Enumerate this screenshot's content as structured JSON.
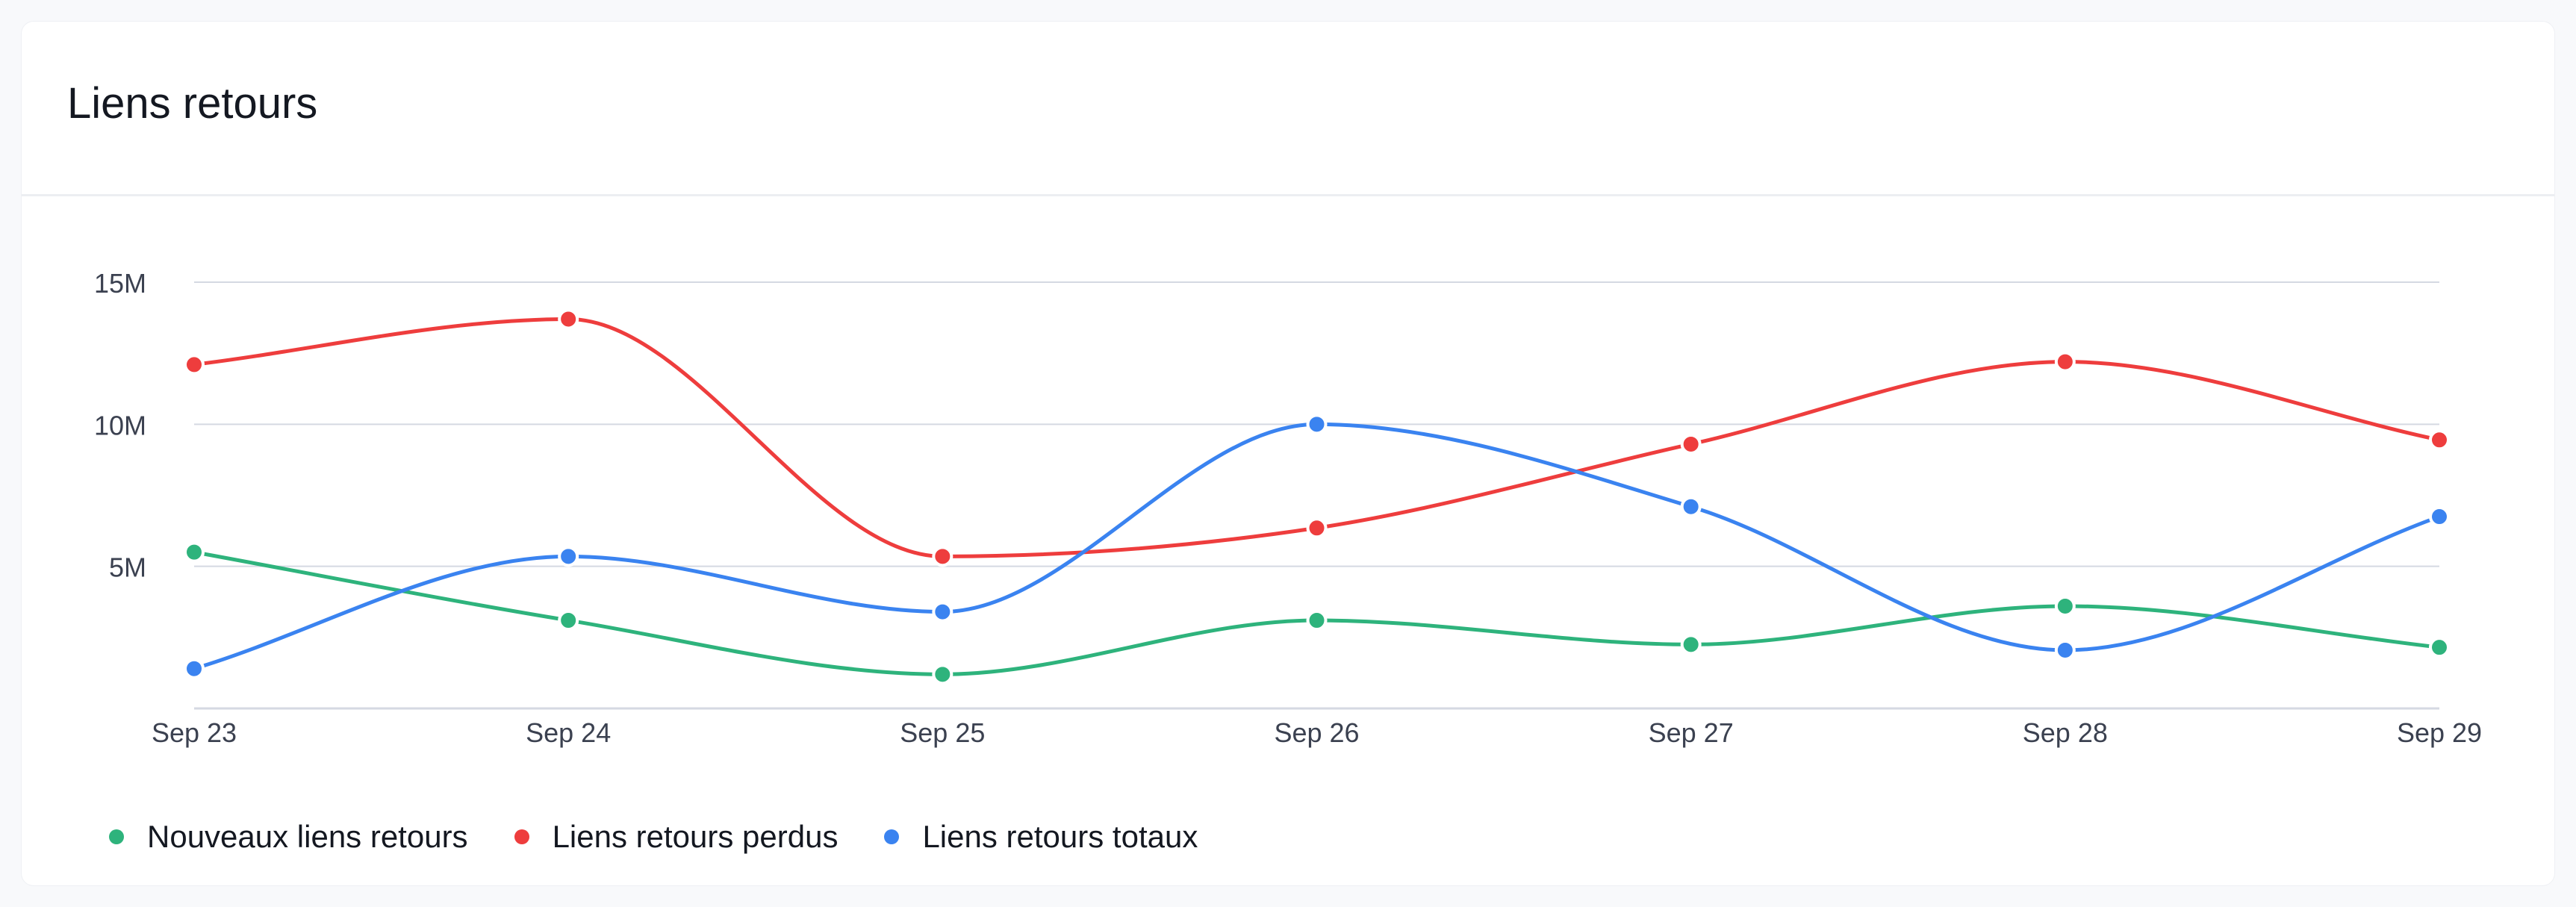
{
  "card": {
    "title": "Liens retours"
  },
  "chart_data": {
    "type": "line",
    "title": "Liens retours",
    "categories": [
      "Sep 23",
      "Sep 24",
      "Sep 25",
      "Sep 26",
      "Sep 27",
      "Sep 28",
      "Sep 29"
    ],
    "ylim": [
      0,
      15000000
    ],
    "yticks": [
      5000000,
      10000000,
      15000000
    ],
    "ytick_labels": [
      "5M",
      "10M",
      "15M"
    ],
    "grid": true,
    "smooth": true,
    "legend_position": "bottom-left",
    "series": [
      {
        "name": "Nouveaux liens retours",
        "color": "#2eb37c",
        "values": [
          5500000,
          3100000,
          1200000,
          3100000,
          2250000,
          3600000,
          2150000
        ]
      },
      {
        "name": "Liens retours perdus",
        "color": "#ee3d3d",
        "values": [
          12100000,
          13700000,
          5350000,
          6350000,
          9300000,
          12200000,
          9450000
        ]
      },
      {
        "name": "Liens retours totaux",
        "color": "#3a83f0",
        "values": [
          1400000,
          5350000,
          3400000,
          10000000,
          7100000,
          2050000,
          6750000
        ]
      }
    ]
  }
}
